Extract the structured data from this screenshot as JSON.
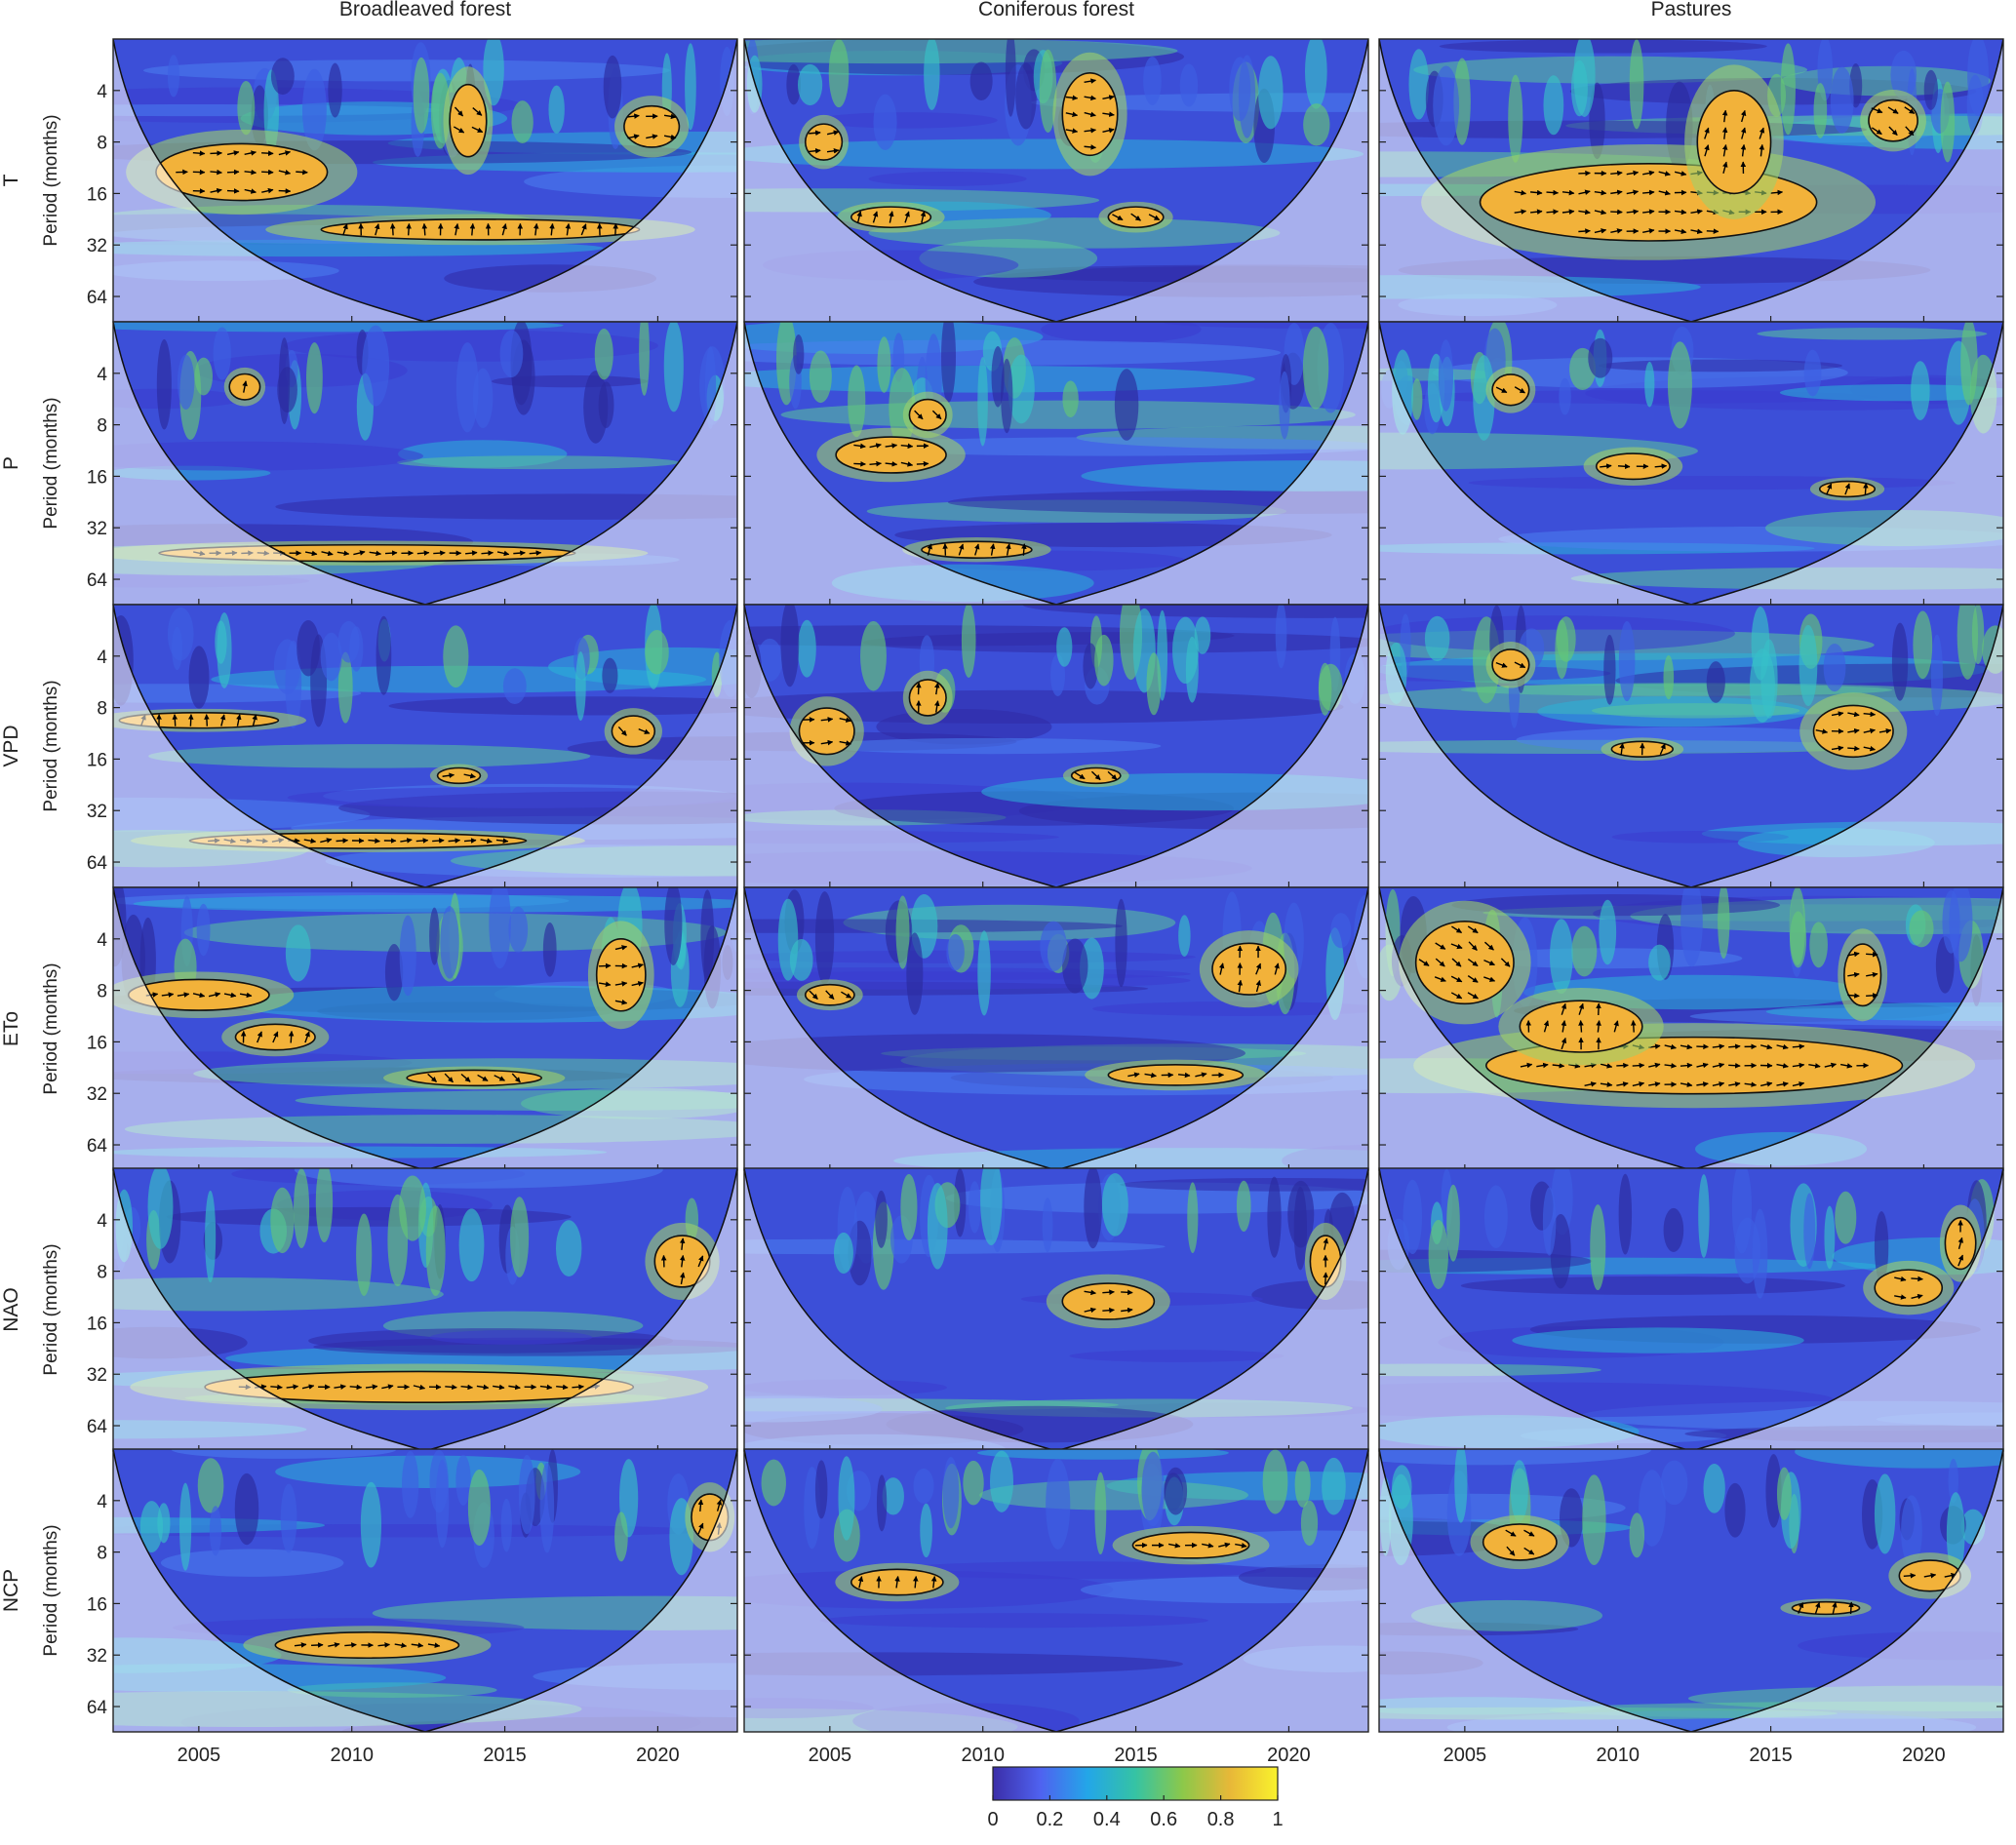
{
  "chart_data": {
    "type": "heatmap",
    "subtype": "wavelet-coherence-grid",
    "columns": [
      "Broadleaved forest",
      "Coniferous forest",
      "Pastures"
    ],
    "rows": [
      "T",
      "P",
      "VPD",
      "ETo",
      "NAO",
      "NCP"
    ],
    "y_axis_label": "Period (months)",
    "y_ticks": [
      4,
      8,
      16,
      32,
      64
    ],
    "y_scale": "log2",
    "y_range": [
      2,
      90
    ],
    "x_ticks": [
      2005,
      2010,
      2015,
      2020
    ],
    "x_range": [
      2002.2,
      2022.6
    ],
    "colorbar": {
      "range": [
        0,
        1
      ],
      "ticks": [
        "0",
        "0.2",
        "0.4",
        "0.6",
        "0.8",
        "1"
      ],
      "colors": [
        "#3b2ea8",
        "#4f62f0",
        "#23a6e8",
        "#35c3a4",
        "#8cc84a",
        "#e8b838",
        "#f9f22c"
      ]
    },
    "significance_colors": {
      "inside_coi": "#f2b23a",
      "outside_coi": "#f5dcb0",
      "contour": "#111111",
      "arrow": "#000000"
    },
    "panels": [
      {
        "col": 0,
        "row": 0,
        "regions": [
          {
            "x": 2006.4,
            "y": 12,
            "rx": 2.8,
            "ry": 0.55
          },
          {
            "x": 2014.2,
            "y": 26,
            "rx": 5.2,
            "ry": 0.2
          },
          {
            "x": 2013.8,
            "y": 6,
            "rx": 0.6,
            "ry": 0.7
          },
          {
            "x": 2019.8,
            "y": 6.5,
            "rx": 0.9,
            "ry": 0.4
          }
        ]
      },
      {
        "col": 1,
        "row": 0,
        "regions": [
          {
            "x": 2013.5,
            "y": 5.5,
            "rx": 0.9,
            "ry": 0.8
          },
          {
            "x": 2007,
            "y": 22,
            "rx": 1.3,
            "ry": 0.2
          },
          {
            "x": 2015,
            "y": 22,
            "rx": 0.9,
            "ry": 0.2
          },
          {
            "x": 2004.8,
            "y": 8,
            "rx": 0.6,
            "ry": 0.35
          }
        ]
      },
      {
        "col": 2,
        "row": 0,
        "regions": [
          {
            "x": 2011,
            "y": 18,
            "rx": 5.5,
            "ry": 0.75
          },
          {
            "x": 2013.8,
            "y": 8,
            "rx": 1.2,
            "ry": 1.0
          },
          {
            "x": 2019,
            "y": 6,
            "rx": 0.8,
            "ry": 0.4
          }
        ]
      },
      {
        "col": 0,
        "row": 1,
        "regions": [
          {
            "x": 2010.5,
            "y": 45,
            "rx": 6.8,
            "ry": 0.16
          },
          {
            "x": 2006.5,
            "y": 4.8,
            "rx": 0.5,
            "ry": 0.25
          }
        ]
      },
      {
        "col": 1,
        "row": 1,
        "regions": [
          {
            "x": 2007,
            "y": 12,
            "rx": 1.8,
            "ry": 0.35
          },
          {
            "x": 2009.8,
            "y": 43,
            "rx": 1.8,
            "ry": 0.16
          },
          {
            "x": 2008.2,
            "y": 7,
            "rx": 0.6,
            "ry": 0.3
          }
        ]
      },
      {
        "col": 2,
        "row": 1,
        "regions": [
          {
            "x": 2010.5,
            "y": 14,
            "rx": 1.2,
            "ry": 0.25
          },
          {
            "x": 2017.5,
            "y": 19,
            "rx": 0.9,
            "ry": 0.15
          },
          {
            "x": 2006.5,
            "y": 5,
            "rx": 0.6,
            "ry": 0.3
          }
        ]
      },
      {
        "col": 0,
        "row": 2,
        "regions": [
          {
            "x": 2010.2,
            "y": 48,
            "rx": 5.5,
            "ry": 0.15
          },
          {
            "x": 2005,
            "y": 9.5,
            "rx": 2.6,
            "ry": 0.15
          },
          {
            "x": 2019.2,
            "y": 11,
            "rx": 0.7,
            "ry": 0.3
          },
          {
            "x": 2013.5,
            "y": 20,
            "rx": 0.7,
            "ry": 0.15
          }
        ]
      },
      {
        "col": 1,
        "row": 2,
        "regions": [
          {
            "x": 2004.9,
            "y": 11,
            "rx": 0.9,
            "ry": 0.45
          },
          {
            "x": 2008.2,
            "y": 7,
            "rx": 0.6,
            "ry": 0.35
          },
          {
            "x": 2013.7,
            "y": 20,
            "rx": 0.8,
            "ry": 0.15
          }
        ]
      },
      {
        "col": 2,
        "row": 2,
        "regions": [
          {
            "x": 2017.7,
            "y": 11,
            "rx": 1.3,
            "ry": 0.5
          },
          {
            "x": 2010.8,
            "y": 14,
            "rx": 1.0,
            "ry": 0.15
          },
          {
            "x": 2006.5,
            "y": 4.5,
            "rx": 0.6,
            "ry": 0.3
          }
        ]
      },
      {
        "col": 0,
        "row": 3,
        "regions": [
          {
            "x": 2005,
            "y": 8.5,
            "rx": 2.3,
            "ry": 0.3
          },
          {
            "x": 2007.5,
            "y": 15,
            "rx": 1.3,
            "ry": 0.25
          },
          {
            "x": 2014,
            "y": 26,
            "rx": 2.2,
            "ry": 0.15
          },
          {
            "x": 2018.8,
            "y": 6.5,
            "rx": 0.8,
            "ry": 0.7
          }
        ]
      },
      {
        "col": 1,
        "row": 3,
        "regions": [
          {
            "x": 2016.3,
            "y": 25,
            "rx": 2.2,
            "ry": 0.2
          },
          {
            "x": 2018.7,
            "y": 6,
            "rx": 1.2,
            "ry": 0.5
          },
          {
            "x": 2005,
            "y": 8.5,
            "rx": 0.8,
            "ry": 0.2
          }
        ]
      },
      {
        "col": 2,
        "row": 3,
        "regions": [
          {
            "x": 2012.5,
            "y": 22,
            "rx": 6.8,
            "ry": 0.55
          },
          {
            "x": 2008.8,
            "y": 13,
            "rx": 2.0,
            "ry": 0.5
          },
          {
            "x": 2005,
            "y": 5.5,
            "rx": 1.6,
            "ry": 0.8
          },
          {
            "x": 2018,
            "y": 6.5,
            "rx": 0.6,
            "ry": 0.6
          }
        ]
      },
      {
        "col": 0,
        "row": 4,
        "regions": [
          {
            "x": 2012.2,
            "y": 38,
            "rx": 7.0,
            "ry": 0.3
          },
          {
            "x": 2020.8,
            "y": 7,
            "rx": 0.9,
            "ry": 0.5
          }
        ]
      },
      {
        "col": 1,
        "row": 4,
        "regions": [
          {
            "x": 2014.1,
            "y": 12,
            "rx": 1.5,
            "ry": 0.35
          },
          {
            "x": 2021.2,
            "y": 7,
            "rx": 0.5,
            "ry": 0.5
          }
        ]
      },
      {
        "col": 2,
        "row": 4,
        "regions": [
          {
            "x": 2019.5,
            "y": 10,
            "rx": 1.1,
            "ry": 0.35
          },
          {
            "x": 2021.2,
            "y": 5.5,
            "rx": 0.5,
            "ry": 0.5
          }
        ]
      },
      {
        "col": 0,
        "row": 5,
        "regions": [
          {
            "x": 2010.5,
            "y": 28,
            "rx": 3.0,
            "ry": 0.25
          },
          {
            "x": 2021.7,
            "y": 5,
            "rx": 0.6,
            "ry": 0.45
          }
        ]
      },
      {
        "col": 1,
        "row": 5,
        "regions": [
          {
            "x": 2016.8,
            "y": 7.3,
            "rx": 1.9,
            "ry": 0.25
          },
          {
            "x": 2007.2,
            "y": 12,
            "rx": 1.5,
            "ry": 0.25
          }
        ]
      },
      {
        "col": 2,
        "row": 5,
        "regions": [
          {
            "x": 2020.2,
            "y": 11,
            "rx": 1.0,
            "ry": 0.3
          },
          {
            "x": 2016.8,
            "y": 17,
            "rx": 1.1,
            "ry": 0.12
          },
          {
            "x": 2006.8,
            "y": 7,
            "rx": 1.2,
            "ry": 0.35
          }
        ]
      }
    ]
  }
}
